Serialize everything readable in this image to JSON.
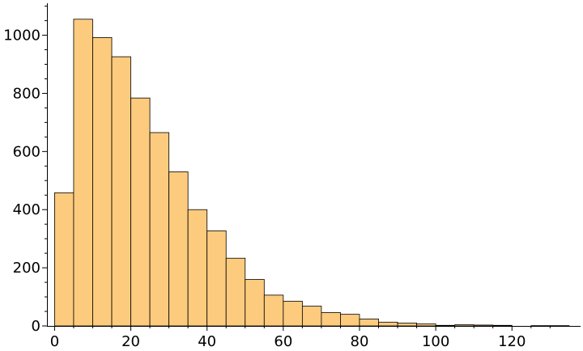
{
  "chart_data": {
    "type": "bar",
    "title": "",
    "xlabel": "",
    "ylabel": "",
    "bin_width": 5,
    "bin_starts": [
      0,
      5,
      10,
      15,
      20,
      25,
      30,
      35,
      40,
      45,
      50,
      55,
      60,
      65,
      70,
      75,
      80,
      85,
      90,
      95,
      100,
      105,
      110,
      115,
      120,
      125,
      130
    ],
    "values": [
      458,
      1055,
      992,
      926,
      784,
      665,
      530,
      400,
      327,
      233,
      160,
      106,
      85,
      68,
      46,
      40,
      24,
      13,
      10,
      7,
      2,
      4,
      3,
      2,
      0,
      1,
      1
    ],
    "xlim": [
      -2,
      138
    ],
    "ylim": [
      0,
      1110
    ],
    "x_ticks": [
      0,
      20,
      40,
      60,
      80,
      100,
      120
    ],
    "y_ticks": [
      0,
      200,
      400,
      600,
      800,
      1000
    ],
    "x_tick_labels": [
      "0",
      "20",
      "40",
      "60",
      "80",
      "100",
      "120"
    ],
    "y_tick_labels": [
      "0",
      "200",
      "400",
      "600",
      "800",
      "1000"
    ],
    "grid": false,
    "legend": "none"
  },
  "colors": {
    "bar_fill": "#fdcb7e",
    "bar_edge": "#000000",
    "axis": "#000000"
  }
}
